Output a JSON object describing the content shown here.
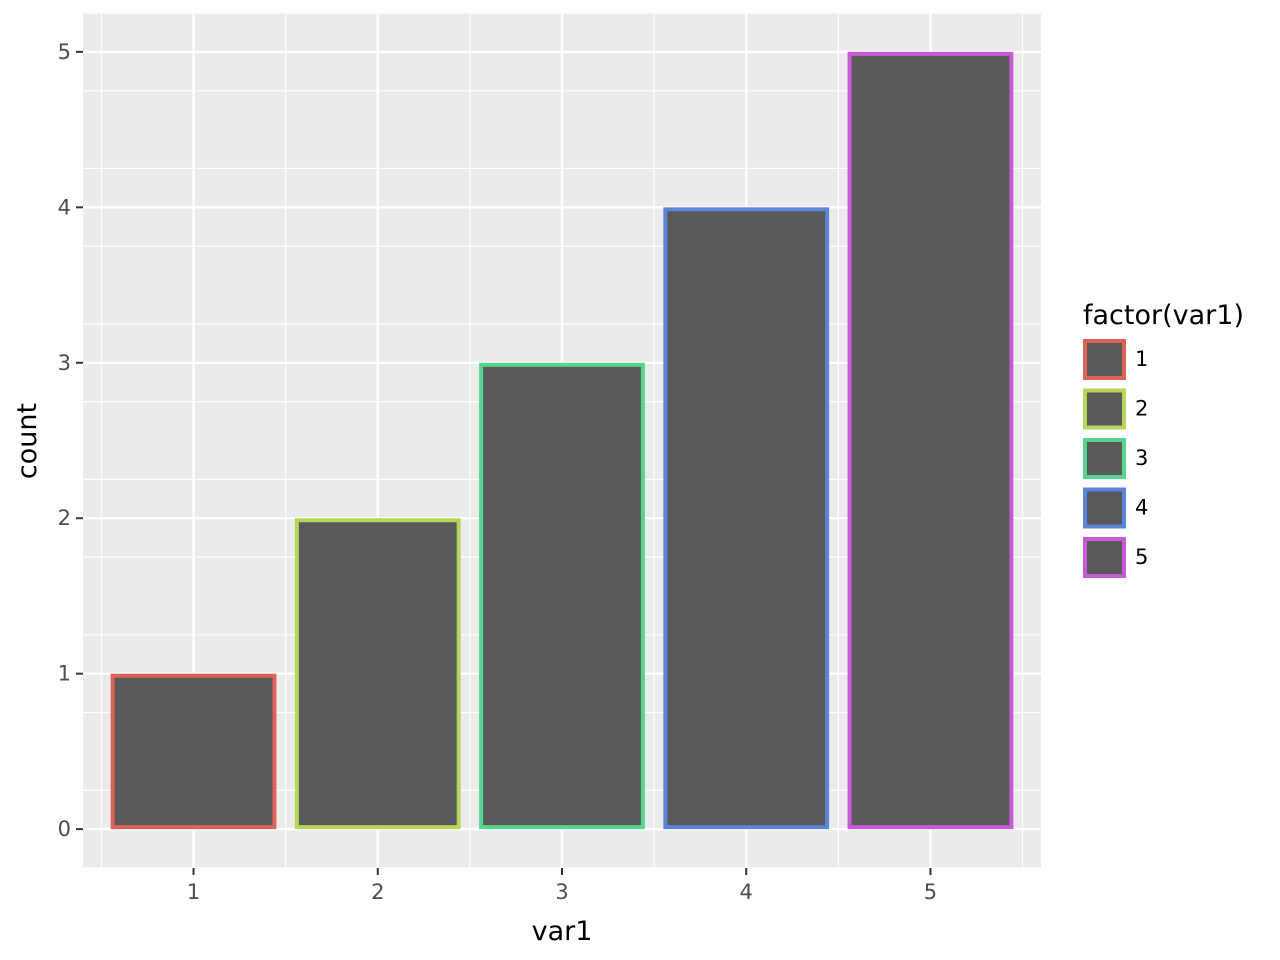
{
  "chart_data": {
    "type": "bar",
    "categories": [
      "1",
      "2",
      "3",
      "4",
      "5"
    ],
    "values": [
      1,
      2,
      3,
      4,
      5
    ],
    "xlabel": "var1",
    "ylabel": "count",
    "ylim": [
      -0.25,
      5.25
    ],
    "y_ticks": [
      "0",
      "1",
      "2",
      "3",
      "4",
      "5"
    ],
    "grid": true,
    "panel_background": "#ebebeb",
    "bar_fill": "#595959",
    "outline_colors": [
      "#e0605a",
      "#b5d65a",
      "#57d48e",
      "#5a85d9",
      "#c75ad9"
    ],
    "legend": {
      "title": "factor(var1)",
      "placement": "right",
      "entries": [
        "1",
        "2",
        "3",
        "4",
        "5"
      ]
    }
  }
}
